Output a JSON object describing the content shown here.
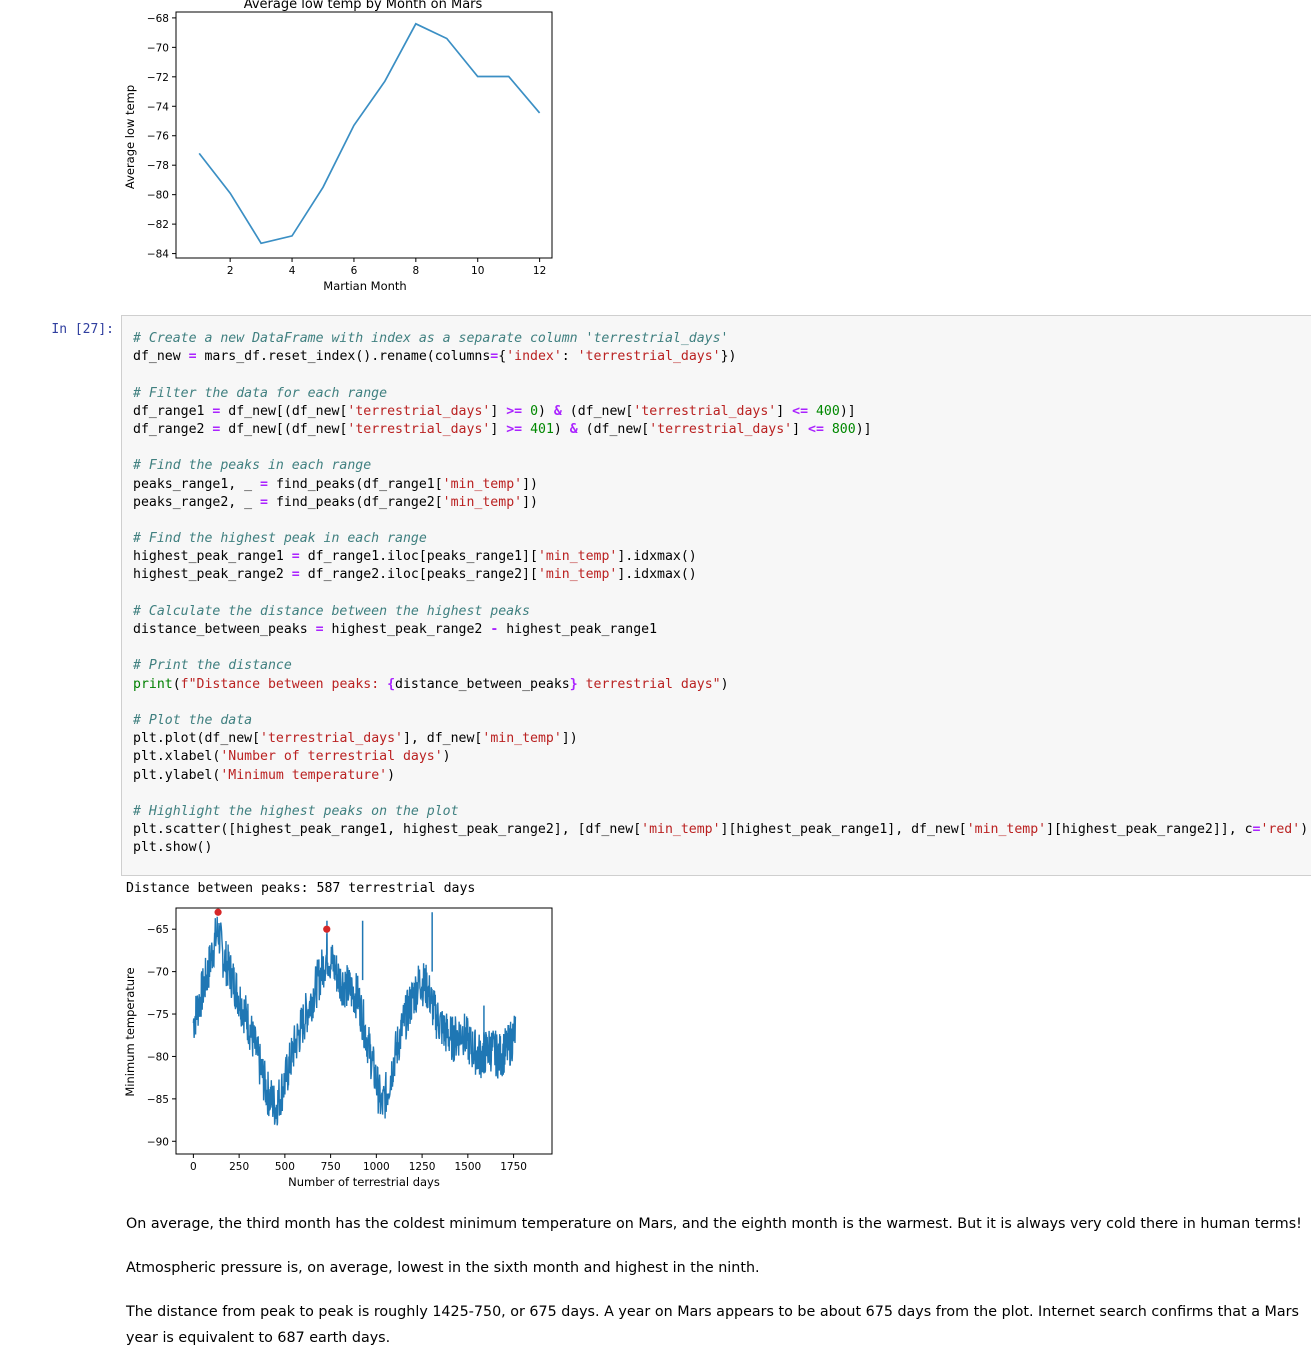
{
  "chart_top": {
    "type": "line",
    "title": "Average low temp by Month on Mars",
    "xlabel": "Martian Month",
    "ylabel": "Average low temp",
    "x": [
      1,
      2,
      3,
      4,
      5,
      6,
      7,
      8,
      9,
      10,
      11,
      12
    ],
    "values": [
      -77.2,
      -79.9,
      -83.3,
      -82.8,
      -79.5,
      -75.3,
      -72.3,
      -68.4,
      -69.4,
      -71.98,
      -71.98,
      -74.45
    ],
    "xlim": [
      0.25,
      12.4
    ],
    "ylim": [
      -84.3,
      -67.6
    ],
    "xticks": [
      2,
      4,
      6,
      8,
      10,
      12
    ],
    "yticks": [
      -68,
      -70,
      -72,
      -74,
      -76,
      -78,
      -80,
      -82,
      -84
    ],
    "line_color": "#3b8fc4"
  },
  "cell": {
    "prompt": "In [27]:",
    "code_lines": [
      [
        [
          "c-com",
          "# Create a new DataFrame with index as a separate column 'terrestrial_days'"
        ]
      ],
      [
        [
          "",
          "df_new "
        ],
        [
          "c-op",
          "="
        ],
        [
          "",
          " mars_df.reset_index().rename(columns"
        ],
        [
          "c-op",
          "="
        ],
        [
          "",
          "{"
        ],
        [
          "c-str",
          "'index'"
        ],
        [
          "",
          ": "
        ],
        [
          "c-str",
          "'terrestrial_days'"
        ],
        [
          "",
          "})"
        ]
      ],
      [
        [
          "",
          ""
        ]
      ],
      [
        [
          "c-com",
          "# Filter the data for each range"
        ]
      ],
      [
        [
          "",
          "df_range1 "
        ],
        [
          "c-op",
          "="
        ],
        [
          "",
          " df_new[(df_new["
        ],
        [
          "c-str",
          "'terrestrial_days'"
        ],
        [
          "",
          "] "
        ],
        [
          "c-op",
          ">="
        ],
        [
          "",
          " "
        ],
        [
          "c-num",
          "0"
        ],
        [
          "",
          ") "
        ],
        [
          "c-op",
          "&"
        ],
        [
          "",
          " (df_new["
        ],
        [
          "c-str",
          "'terrestrial_days'"
        ],
        [
          "",
          "] "
        ],
        [
          "c-op",
          "<="
        ],
        [
          "",
          " "
        ],
        [
          "c-num",
          "400"
        ],
        [
          "",
          ")]"
        ]
      ],
      [
        [
          "",
          "df_range2 "
        ],
        [
          "c-op",
          "="
        ],
        [
          "",
          " df_new[(df_new["
        ],
        [
          "c-str",
          "'terrestrial_days'"
        ],
        [
          "",
          "] "
        ],
        [
          "c-op",
          ">="
        ],
        [
          "",
          " "
        ],
        [
          "c-num",
          "401"
        ],
        [
          "",
          ") "
        ],
        [
          "c-op",
          "&"
        ],
        [
          "",
          " (df_new["
        ],
        [
          "c-str",
          "'terrestrial_days'"
        ],
        [
          "",
          "] "
        ],
        [
          "c-op",
          "<="
        ],
        [
          "",
          " "
        ],
        [
          "c-num",
          "800"
        ],
        [
          "",
          ")]"
        ]
      ],
      [
        [
          "",
          ""
        ]
      ],
      [
        [
          "c-com",
          "# Find the peaks in each range"
        ]
      ],
      [
        [
          "",
          "peaks_range1, _ "
        ],
        [
          "c-op",
          "="
        ],
        [
          "",
          " find_peaks(df_range1["
        ],
        [
          "c-str",
          "'min_temp'"
        ],
        [
          "",
          "])"
        ]
      ],
      [
        [
          "",
          "peaks_range2, _ "
        ],
        [
          "c-op",
          "="
        ],
        [
          "",
          " find_peaks(df_range2["
        ],
        [
          "c-str",
          "'min_temp'"
        ],
        [
          "",
          "])"
        ]
      ],
      [
        [
          "",
          ""
        ]
      ],
      [
        [
          "c-com",
          "# Find the highest peak in each range"
        ]
      ],
      [
        [
          "",
          "highest_peak_range1 "
        ],
        [
          "c-op",
          "="
        ],
        [
          "",
          " df_range1.iloc[peaks_range1]["
        ],
        [
          "c-str",
          "'min_temp'"
        ],
        [
          "",
          "].idxmax()"
        ]
      ],
      [
        [
          "",
          "highest_peak_range2 "
        ],
        [
          "c-op",
          "="
        ],
        [
          "",
          " df_range2.iloc[peaks_range2]["
        ],
        [
          "c-str",
          "'min_temp'"
        ],
        [
          "",
          "].idxmax()"
        ]
      ],
      [
        [
          "",
          ""
        ]
      ],
      [
        [
          "c-com",
          "# Calculate the distance between the highest peaks"
        ]
      ],
      [
        [
          "",
          "distance_between_peaks "
        ],
        [
          "c-op",
          "="
        ],
        [
          "",
          " highest_peak_range2 "
        ],
        [
          "c-op",
          "-"
        ],
        [
          "",
          " highest_peak_range1"
        ]
      ],
      [
        [
          "",
          ""
        ]
      ],
      [
        [
          "c-com",
          "# Print the distance"
        ]
      ],
      [
        [
          "c-kw",
          "print"
        ],
        [
          "",
          "("
        ],
        [
          "c-str",
          "f\"Distance between peaks: "
        ],
        [
          "c-op",
          "{"
        ],
        [
          "",
          "distance_between_peaks"
        ],
        [
          "c-op",
          "}"
        ],
        [
          "c-str",
          " terrestrial days\""
        ],
        [
          "",
          ")"
        ]
      ],
      [
        [
          "",
          ""
        ]
      ],
      [
        [
          "c-com",
          "# Plot the data"
        ]
      ],
      [
        [
          "",
          "plt.plot(df_new["
        ],
        [
          "c-str",
          "'terrestrial_days'"
        ],
        [
          "",
          "], df_new["
        ],
        [
          "c-str",
          "'min_temp'"
        ],
        [
          "",
          "])"
        ]
      ],
      [
        [
          "",
          "plt.xlabel("
        ],
        [
          "c-str",
          "'Number of terrestrial days'"
        ],
        [
          "",
          ")"
        ]
      ],
      [
        [
          "",
          "plt.ylabel("
        ],
        [
          "c-str",
          "'Minimum temperature'"
        ],
        [
          "",
          ")"
        ]
      ],
      [
        [
          "",
          ""
        ]
      ],
      [
        [
          "c-com",
          "# Highlight the highest peaks on the plot"
        ]
      ],
      [
        [
          "",
          "plt.scatter([highest_peak_range1, highest_peak_range2], [df_new["
        ],
        [
          "c-str",
          "'min_temp'"
        ],
        [
          "",
          "][highest_peak_range1], df_new["
        ],
        [
          "c-str",
          "'min_temp'"
        ],
        [
          "",
          "][highest_peak_range2]], c"
        ],
        [
          "c-op",
          "="
        ],
        [
          "c-str",
          "'red'"
        ],
        [
          "",
          ")"
        ]
      ],
      [
        [
          "",
          "plt.show()"
        ]
      ]
    ],
    "output_text": "Distance between peaks: 587 terrestrial days"
  },
  "chart_bottom": {
    "type": "line",
    "xlabel": "Number of terrestrial days",
    "ylabel": "Minimum temperature",
    "xlim": [
      -95,
      1960
    ],
    "ylim": [
      -91.5,
      -62.5
    ],
    "xticks": [
      0,
      250,
      500,
      750,
      1000,
      1250,
      1500,
      1750
    ],
    "yticks": [
      -65,
      -70,
      -75,
      -80,
      -85,
      -90
    ],
    "series_color": "#1f77b4",
    "approx_series": [
      [
        0,
        -76
      ],
      [
        40,
        -73
      ],
      [
        80,
        -70
      ],
      [
        110,
        -67
      ],
      [
        135,
        -65
      ],
      [
        160,
        -68
      ],
      [
        200,
        -70
      ],
      [
        250,
        -73
      ],
      [
        300,
        -76
      ],
      [
        350,
        -80
      ],
      [
        400,
        -84
      ],
      [
        450,
        -86
      ],
      [
        500,
        -83
      ],
      [
        550,
        -79
      ],
      [
        600,
        -76
      ],
      [
        650,
        -73
      ],
      [
        700,
        -70
      ],
      [
        730,
        -68
      ],
      [
        760,
        -69
      ],
      [
        800,
        -71
      ],
      [
        850,
        -72
      ],
      [
        900,
        -73
      ],
      [
        950,
        -78
      ],
      [
        1000,
        -83
      ],
      [
        1030,
        -86
      ],
      [
        1060,
        -84
      ],
      [
        1100,
        -80
      ],
      [
        1150,
        -76
      ],
      [
        1200,
        -73
      ],
      [
        1240,
        -71
      ],
      [
        1280,
        -72
      ],
      [
        1320,
        -75
      ],
      [
        1370,
        -77
      ],
      [
        1420,
        -78
      ],
      [
        1470,
        -77
      ],
      [
        1520,
        -79
      ],
      [
        1570,
        -80
      ],
      [
        1620,
        -79
      ],
      [
        1670,
        -80
      ],
      [
        1720,
        -79
      ],
      [
        1760,
        -77
      ]
    ],
    "peaks": [
      [
        135,
        -63
      ],
      [
        729,
        -65
      ]
    ],
    "peak_color": "#d62728",
    "spikes": [
      [
        730,
        -68,
        -64
      ],
      [
        925,
        -71,
        -64
      ],
      [
        1305,
        -70,
        -63
      ],
      [
        1588,
        -74,
        -82
      ]
    ]
  },
  "markdown": [
    "On average, the third month has the coldest minimum temperature on Mars, and the eighth month is the warmest. But it is always very cold there in human terms!",
    "Atmospheric pressure is, on average, lowest in the sixth month and highest in the ninth.",
    "The distance from peak to peak is roughly 1425-750, or 675 days. A year on Mars appears to be about 675 days from the plot. Internet search confirms that a Mars year is equivalent to 687 earth days."
  ]
}
